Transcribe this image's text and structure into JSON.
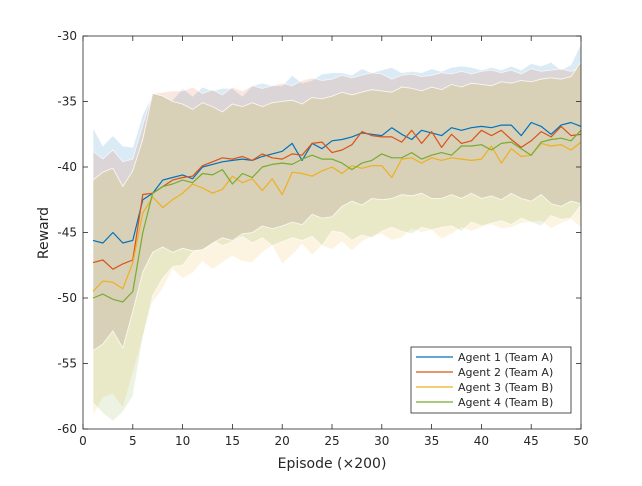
{
  "chart_data": {
    "type": "line",
    "title": "",
    "xlabel": "Episode (×200)",
    "ylabel": "Reward",
    "xlim": [
      0,
      50
    ],
    "ylim": [
      -60,
      -30
    ],
    "xticks": [
      0,
      5,
      10,
      15,
      20,
      25,
      30,
      35,
      40,
      45,
      50
    ],
    "yticks": [
      -60,
      -55,
      -50,
      -45,
      -40,
      -35,
      -30
    ],
    "grid": false,
    "legend_position": "bottom-right",
    "x": [
      1,
      2,
      3,
      4,
      5,
      6,
      7,
      8,
      9,
      10,
      11,
      12,
      13,
      14,
      15,
      16,
      17,
      18,
      19,
      20,
      21,
      22,
      23,
      24,
      25,
      26,
      27,
      28,
      29,
      30,
      31,
      32,
      33,
      34,
      35,
      36,
      37,
      38,
      39,
      40,
      41,
      42,
      43,
      44,
      45,
      46,
      47,
      48,
      49,
      50
    ],
    "series": [
      {
        "name": "Agent 1 (Team A)",
        "color": "#0072BD",
        "values": [
          -45.6,
          -45.8,
          -45.0,
          -45.8,
          -45.6,
          -42.5,
          -42.0,
          -41.0,
          -40.8,
          -40.6,
          -40.9,
          -40.0,
          -39.8,
          -39.6,
          -39.5,
          -39.4,
          -39.5,
          -39.2,
          -39.0,
          -38.8,
          -38.2,
          -39.5,
          -38.2,
          -38.6,
          -38.0,
          -37.9,
          -37.7,
          -37.4,
          -37.5,
          -37.6,
          -37.0,
          -37.5,
          -37.9,
          -37.2,
          -37.4,
          -37.6,
          -37.0,
          -37.2,
          -37.0,
          -36.9,
          -37.0,
          -36.8,
          -36.8,
          -37.6,
          -36.6,
          -36.9,
          -37.5,
          -36.8,
          -36.6,
          -36.9
        ]
      },
      {
        "name": "Agent 2 (Team A)",
        "color": "#D95319",
        "values": [
          -47.3,
          -47.1,
          -47.8,
          -47.4,
          -47.1,
          -42.1,
          -42.0,
          -41.5,
          -41.0,
          -40.8,
          -40.7,
          -39.9,
          -39.6,
          -39.3,
          -39.4,
          -39.2,
          -39.5,
          -39.0,
          -39.3,
          -39.4,
          -39.0,
          -39.1,
          -38.2,
          -38.1,
          -38.9,
          -38.7,
          -38.3,
          -37.3,
          -37.6,
          -37.7,
          -37.7,
          -38.1,
          -37.2,
          -38.2,
          -37.3,
          -38.5,
          -37.5,
          -38.2,
          -38.0,
          -37.2,
          -37.6,
          -37.2,
          -37.9,
          -38.5,
          -38.0,
          -37.3,
          -37.7,
          -36.9,
          -37.6,
          -37.5
        ]
      },
      {
        "name": "Agent 3 (Team B)",
        "color": "#EDB120",
        "values": [
          -49.5,
          -48.7,
          -48.8,
          -49.3,
          -47.3,
          -43.5,
          -42.3,
          -43.1,
          -42.5,
          -42.0,
          -41.3,
          -41.6,
          -42.0,
          -41.7,
          -40.7,
          -41.2,
          -40.9,
          -41.8,
          -40.9,
          -42.1,
          -40.4,
          -40.5,
          -40.7,
          -40.3,
          -40.0,
          -40.5,
          -39.9,
          -40.1,
          -39.9,
          -39.9,
          -40.8,
          -39.4,
          -39.3,
          -39.7,
          -39.3,
          -39.5,
          -39.3,
          -39.4,
          -39.5,
          -39.4,
          -38.4,
          -39.7,
          -38.6,
          -39.2,
          -39.1,
          -38.2,
          -38.4,
          -38.3,
          -38.7,
          -38.1
        ]
      },
      {
        "name": "Agent 4 (Team B)",
        "color": "#77AC30",
        "values": [
          -50.0,
          -49.7,
          -50.1,
          -50.3,
          -49.5,
          -45.0,
          -42.0,
          -41.5,
          -41.3,
          -41.0,
          -41.2,
          -40.5,
          -40.6,
          -40.2,
          -41.3,
          -40.5,
          -40.8,
          -40.0,
          -39.8,
          -39.7,
          -39.8,
          -39.4,
          -39.1,
          -39.4,
          -39.4,
          -39.7,
          -40.2,
          -39.7,
          -39.5,
          -39.0,
          -39.3,
          -39.3,
          -38.9,
          -39.4,
          -39.1,
          -38.9,
          -39.1,
          -38.4,
          -38.4,
          -38.3,
          -38.7,
          -38.2,
          -38.1,
          -38.6,
          -39.1,
          -38.1,
          -37.9,
          -37.8,
          -38.0,
          -37.2
        ]
      }
    ],
    "bands": [
      {
        "series": "Agent 1 (Team A)",
        "color": "#0072BD",
        "upper": [
          -37.0,
          -38.4,
          -37.6,
          -38.4,
          -38.5,
          -36.0,
          -34.5,
          -34.7,
          -34.9,
          -34.0,
          -34.6,
          -33.9,
          -34.2,
          -34.0,
          -34.0,
          -34.6,
          -33.8,
          -33.6,
          -33.8,
          -33.8,
          -33.0,
          -33.6,
          -33.4,
          -32.9,
          -32.8,
          -32.8,
          -33.0,
          -32.5,
          -32.8,
          -32.6,
          -32.4,
          -32.8,
          -32.7,
          -32.8,
          -32.5,
          -32.7,
          -32.4,
          -32.3,
          -32.4,
          -32.6,
          -32.4,
          -32.6,
          -32.3,
          -32.6,
          -32.1,
          -32.3,
          -32.0,
          -32.6,
          -32.2,
          -30.6
        ]
      },
      {
        "series": "Agent 2 (Team A)",
        "color": "#D95319",
        "upper": [
          -38.8,
          -39.4,
          -38.7,
          -39.6,
          -39.4,
          -36.8,
          -34.4,
          -34.3,
          -34.2,
          -34.2,
          -33.9,
          -34.4,
          -34.1,
          -34.5,
          -33.9,
          -34.2,
          -33.8,
          -34.0,
          -33.8,
          -33.6,
          -33.8,
          -33.4,
          -33.2,
          -33.4,
          -33.3,
          -33.0,
          -33.2,
          -33.0,
          -32.8,
          -32.9,
          -33.3,
          -33.0,
          -32.9,
          -33.1,
          -33.0,
          -32.8,
          -32.9,
          -32.7,
          -32.9,
          -32.7,
          -32.6,
          -32.8,
          -32.6,
          -32.9,
          -32.5,
          -32.7,
          -32.6,
          -32.5,
          -32.7,
          -32.4
        ]
      },
      {
        "series": "Agent 3 (Team B)",
        "color": "#EDB120",
        "lower": [
          -59.0,
          -57.6,
          -57.3,
          -58.4,
          -55.7,
          -53.0,
          -50.3,
          -49.3,
          -47.8,
          -48.5,
          -48.1,
          -47.2,
          -47.8,
          -47.3,
          -46.8,
          -47.2,
          -47.3,
          -46.5,
          -46.0,
          -47.4,
          -46.7,
          -45.9,
          -46.7,
          -46.0,
          -46.3,
          -45.7,
          -46.4,
          -45.7,
          -45.3,
          -45.1,
          -45.6,
          -45.4,
          -44.7,
          -45.0,
          -44.8,
          -45.5,
          -45.1,
          -44.6,
          -44.9,
          -44.6,
          -44.4,
          -44.7,
          -44.6,
          -44.3,
          -44.2,
          -44.1,
          -44.7,
          -44.3,
          -44.0,
          -44.6
        ]
      },
      {
        "series": "Agent 4 (Team B)",
        "color": "#77AC30",
        "lower": [
          -58.0,
          -58.8,
          -59.4,
          -58.7,
          -57.5,
          -53.0,
          -49.8,
          -48.5,
          -47.6,
          -47.5,
          -46.5,
          -46.2,
          -45.6,
          -46.0,
          -45.7,
          -45.3,
          -45.8,
          -45.4,
          -46.0,
          -45.7,
          -45.4,
          -45.6,
          -45.3,
          -46.0,
          -44.9,
          -45.0,
          -45.6,
          -45.2,
          -45.4,
          -44.9,
          -44.6,
          -44.9,
          -45.1,
          -44.6,
          -44.8,
          -44.6,
          -44.5,
          -44.9,
          -44.2,
          -44.5,
          -44.3,
          -44.1,
          -44.4,
          -43.9,
          -44.2,
          -44.5,
          -43.7,
          -44.0,
          -43.9,
          -42.9
        ]
      }
    ],
    "shared_band": {
      "color": "#B8A97C",
      "upper": [
        -41.0,
        -40.4,
        -40.1,
        -41.5,
        -40.3,
        -37.9,
        -34.4,
        -34.6,
        -35.0,
        -35.2,
        -35.6,
        -35.1,
        -35.4,
        -35.8,
        -35.2,
        -35.4,
        -35.1,
        -35.4,
        -35.1,
        -35.0,
        -34.9,
        -35.2,
        -34.7,
        -34.8,
        -34.6,
        -34.3,
        -34.5,
        -34.3,
        -34.1,
        -34.2,
        -34.3,
        -33.9,
        -34.0,
        -34.2,
        -33.9,
        -34.1,
        -33.7,
        -33.9,
        -33.6,
        -33.7,
        -33.8,
        -33.5,
        -33.6,
        -33.4,
        -33.5,
        -33.3,
        -33.2,
        -33.3,
        -33.1,
        -32.0
      ],
      "lower": [
        -54.0,
        -53.5,
        -52.5,
        -53.8,
        -51.0,
        -48.0,
        -46.5,
        -46.1,
        -46.5,
        -46.2,
        -46.4,
        -46.3,
        -45.8,
        -45.4,
        -45.6,
        -45.1,
        -45.0,
        -44.5,
        -44.7,
        -44.5,
        -44.2,
        -44.4,
        -43.6,
        -43.9,
        -43.8,
        -43.0,
        -42.6,
        -42.9,
        -42.4,
        -42.5,
        -42.4,
        -42.1,
        -42.2,
        -42.0,
        -42.4,
        -42.4,
        -42.1,
        -42.4,
        -42.0,
        -42.4,
        -42.2,
        -42.5,
        -42.0,
        -42.4,
        -42.6,
        -42.1,
        -42.8,
        -43.0,
        -42.6,
        -42.8
      ]
    }
  }
}
